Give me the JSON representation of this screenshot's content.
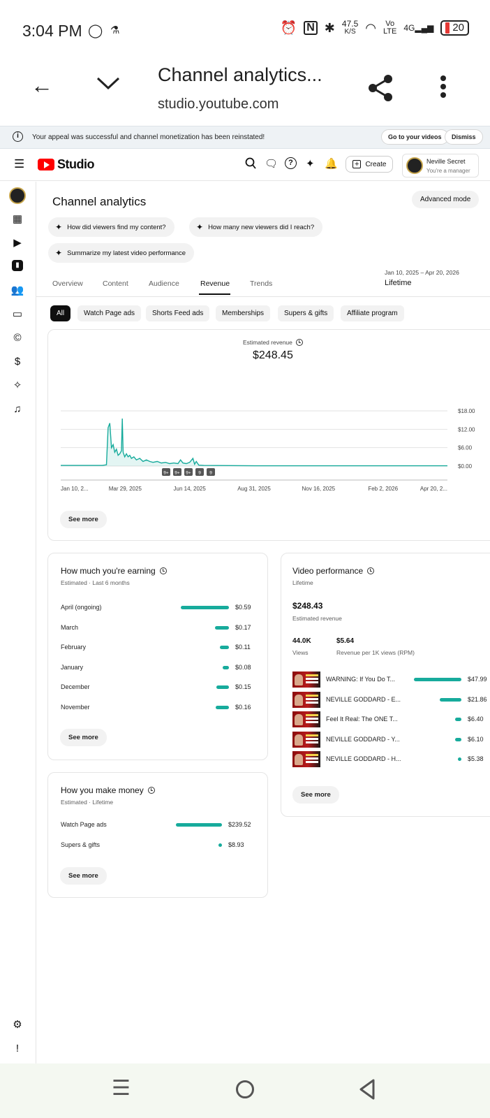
{
  "status_bar": {
    "time": "3:04 PM",
    "speed_value": "47.5",
    "speed_unit": "K/S",
    "network": "4G",
    "volte_1": "Vo",
    "volte_2": "LTE",
    "battery": "20"
  },
  "browser": {
    "title": "Channel analytics...",
    "url": "studio.youtube.com"
  },
  "banner": {
    "message": "Your appeal was successful and channel monetization has been reinstated!",
    "go_button": "Go to your videos",
    "dismiss_button": "Dismiss"
  },
  "header": {
    "logo_text": "Studio",
    "create_label": "Create",
    "account_name": "Neville Secret",
    "account_role": "You're a manager"
  },
  "page": {
    "title": "Channel analytics",
    "advanced_mode": "Advanced mode",
    "prompts": [
      "How did viewers find my content?",
      "How many new viewers did I reach?",
      "Summarize my latest video performance"
    ],
    "tabs": [
      "Overview",
      "Content",
      "Audience",
      "Revenue",
      "Trends"
    ],
    "active_tab": "Revenue",
    "date_range": "Jan 10, 2025 – Apr 20, 2026",
    "date_label": "Lifetime",
    "filters": [
      "All",
      "Watch Page ads",
      "Shorts Feed ads",
      "Memberships",
      "Supers & gifts",
      "Affiliate program"
    ]
  },
  "revenue_card": {
    "label": "Estimated revenue",
    "value": "$248.45",
    "see_more": "See more",
    "badges": [
      "9+",
      "9+",
      "9+",
      "9",
      "9"
    ]
  },
  "chart_data": {
    "type": "line",
    "x_ticks": [
      "Jan 10, 2...",
      "Mar 29, 2025",
      "Jun 14, 2025",
      "Aug 31, 2025",
      "Nov 16, 2025",
      "Feb 2, 2026",
      "Apr 20, 2..."
    ],
    "y_ticks": [
      "$18.00",
      "$12.00",
      "$6.00",
      "$0.00"
    ],
    "ylim": [
      0,
      18
    ],
    "x_range": [
      "2025-01-10",
      "2026-04-20"
    ],
    "series": [
      {
        "x": [
          "2025-01-10",
          "2025-03-01",
          "2025-03-06",
          "2025-03-08",
          "2025-03-10",
          "2025-03-12",
          "2025-03-14",
          "2025-03-16",
          "2025-03-18",
          "2025-03-20",
          "2025-03-22",
          "2025-03-24",
          "2025-03-25",
          "2025-03-26",
          "2025-03-28",
          "2025-03-30",
          "2025-04-01",
          "2025-04-03",
          "2025-04-05",
          "2025-04-08",
          "2025-04-11",
          "2025-04-15",
          "2025-04-19",
          "2025-04-23",
          "2025-04-27",
          "2025-05-01",
          "2025-05-06",
          "2025-05-11",
          "2025-05-16",
          "2025-05-21",
          "2025-05-26",
          "2025-05-31",
          "2025-06-03",
          "2025-06-06",
          "2025-06-10",
          "2025-06-14",
          "2025-06-18",
          "2025-06-20",
          "2025-06-22",
          "2025-06-25",
          "2025-07-01",
          "2025-09-01",
          "2025-12-01",
          "2026-04-20"
        ],
        "y": [
          0.2,
          0.2,
          0.4,
          12.5,
          14.0,
          6.0,
          7.0,
          4.5,
          5.5,
          3.5,
          4.0,
          5.0,
          15.5,
          4.5,
          3.0,
          4.0,
          3.0,
          3.5,
          2.5,
          3.0,
          2.0,
          2.5,
          1.5,
          2.0,
          1.5,
          1.2,
          1.5,
          1.0,
          1.2,
          0.8,
          1.0,
          0.8,
          2.0,
          1.0,
          0.8,
          1.2,
          2.5,
          0.6,
          1.5,
          0.3,
          0.2,
          0.1,
          0.1,
          0.1
        ]
      }
    ]
  },
  "earning_card": {
    "title": "How much you're earning",
    "subtitle": "Estimated · Last 6 months",
    "rows": [
      {
        "label": "April (ongoing)",
        "value": "$0.59",
        "amount": 0.59
      },
      {
        "label": "March",
        "value": "$0.17",
        "amount": 0.17
      },
      {
        "label": "February",
        "value": "$0.11",
        "amount": 0.11
      },
      {
        "label": "January",
        "value": "$0.08",
        "amount": 0.08
      },
      {
        "label": "December",
        "value": "$0.15",
        "amount": 0.15
      },
      {
        "label": "November",
        "value": "$0.16",
        "amount": 0.16
      }
    ],
    "see_more": "See more"
  },
  "money_card": {
    "title": "How you make money",
    "subtitle": "Estimated · Lifetime",
    "rows": [
      {
        "label": "Watch Page ads",
        "value": "$239.52",
        "amount": 239.52
      },
      {
        "label": "Supers & gifts",
        "value": "$8.93",
        "amount": 8.93
      }
    ],
    "see_more": "See more"
  },
  "video_card": {
    "title": "Video performance",
    "subtitle": "Lifetime",
    "revenue": "$248.43",
    "revenue_label": "Estimated revenue",
    "views": "44.0K",
    "views_label": "Views",
    "rpm": "$5.64",
    "rpm_label": "Revenue per 1K views (RPM)",
    "videos": [
      {
        "title": "WARNING: If You Do T...",
        "value": "$47.99",
        "amount": 47.99
      },
      {
        "title": "NEVILLE GODDARD - E...",
        "value": "$21.86",
        "amount": 21.86
      },
      {
        "title": "Feel It Real: The ONE T...",
        "value": "$6.40",
        "amount": 6.4
      },
      {
        "title": "NEVILLE GODDARD - Y...",
        "value": "$6.10",
        "amount": 6.1
      },
      {
        "title": "NEVILLE GODDARD - H...",
        "value": "$5.38",
        "amount": 5.38
      }
    ],
    "see_more": "See more"
  },
  "colors": {
    "accent": "#17ab9c",
    "brand": "#ff0000"
  }
}
